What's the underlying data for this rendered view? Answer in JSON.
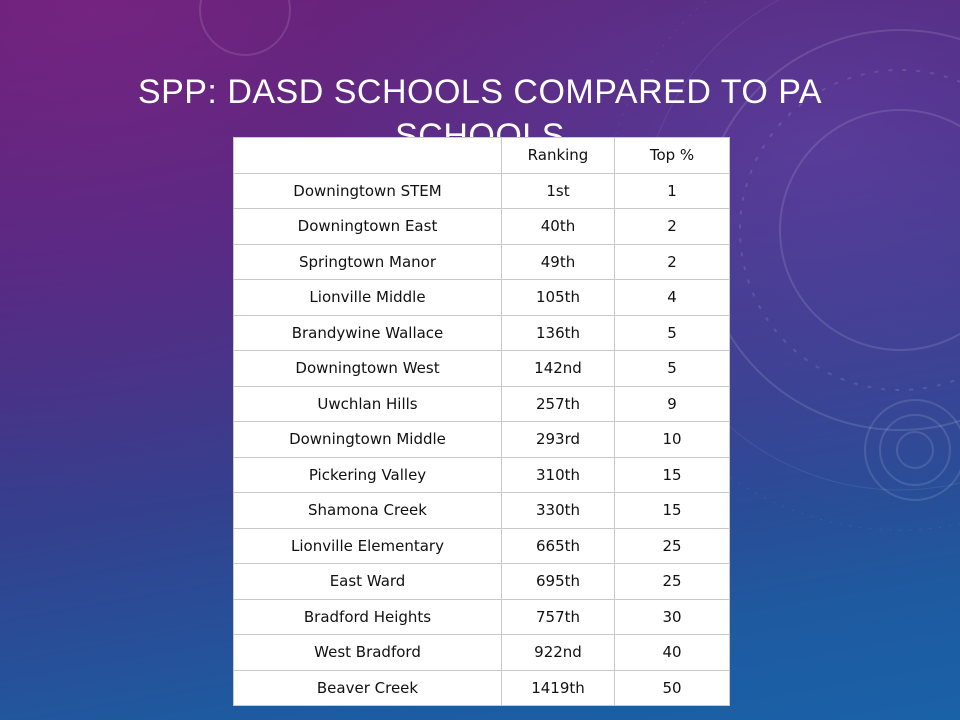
{
  "slide": {
    "title": "SPP: DASD Schools Compared to PA Schools"
  },
  "table": {
    "headers": [
      "",
      "Ranking",
      "Top %"
    ],
    "rows": [
      {
        "school": "Downingtown STEM",
        "ranking": "1st",
        "top": "1"
      },
      {
        "school": "Downingtown East",
        "ranking": "40th",
        "top": "2"
      },
      {
        "school": "Springtown Manor",
        "ranking": "49th",
        "top": "2"
      },
      {
        "school": "Lionville Middle",
        "ranking": "105th",
        "top": "4"
      },
      {
        "school": "Brandywine Wallace",
        "ranking": "136th",
        "top": "5"
      },
      {
        "school": "Downingtown West",
        "ranking": "142nd",
        "top": "5"
      },
      {
        "school": "Uwchlan Hills",
        "ranking": "257th",
        "top": "9"
      },
      {
        "school": "Downingtown Middle",
        "ranking": "293rd",
        "top": "10"
      },
      {
        "school": "Pickering Valley",
        "ranking": "310th",
        "top": "15"
      },
      {
        "school": "Shamona Creek",
        "ranking": "330th",
        "top": "15"
      },
      {
        "school": "Lionville Elementary",
        "ranking": "665th",
        "top": "25"
      },
      {
        "school": "East Ward",
        "ranking": "695th",
        "top": "25"
      },
      {
        "school": "Bradford Heights",
        "ranking": "757th",
        "top": "30"
      },
      {
        "school": "West Bradford",
        "ranking": "922nd",
        "top": "40"
      },
      {
        "school": "Beaver Creek",
        "ranking": "1419th",
        "top": "50"
      }
    ]
  },
  "colors": {
    "background_top": "#5a1f6e",
    "background_bottom": "#1a62a8",
    "title_text": "#ffffff",
    "table_background": "#ffffff"
  }
}
